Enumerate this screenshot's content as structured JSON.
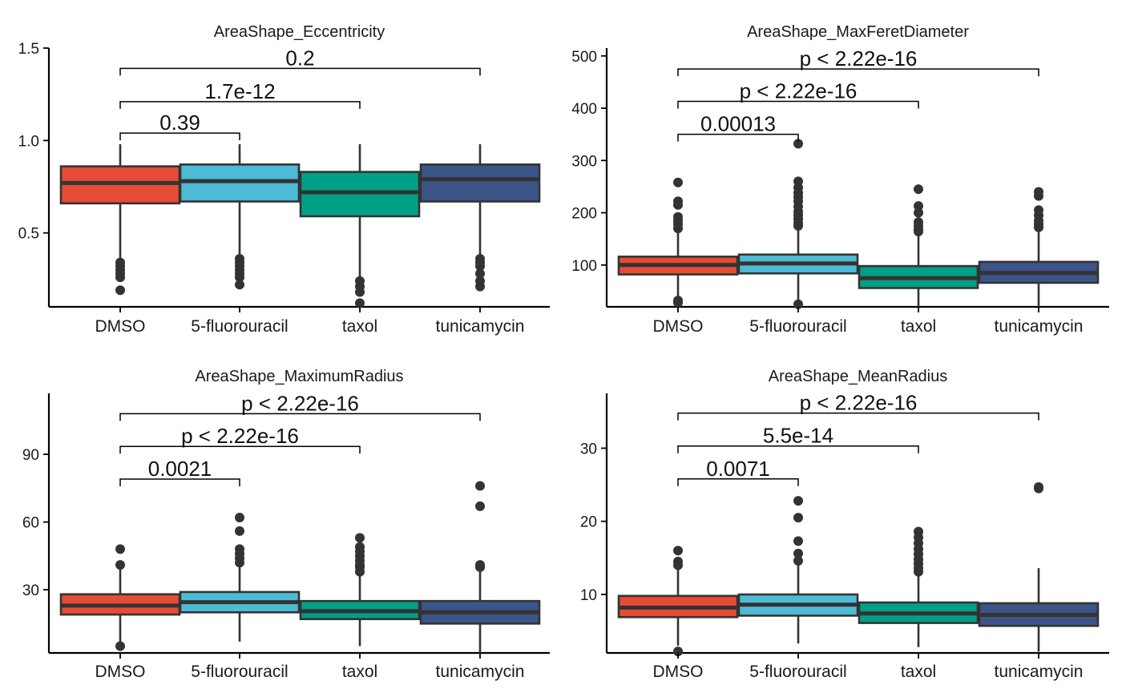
{
  "chart_data": [
    {
      "type": "box",
      "title": "AreaShape_Eccentricity",
      "categories": [
        "DMSO",
        "5-fluorouracil",
        "taxol",
        "tunicamycin"
      ],
      "colors": [
        "#E64B35",
        "#4DBBD5",
        "#00A087",
        "#3C5488"
      ],
      "ylim": [
        0.1,
        1.5
      ],
      "yticks": [
        0.5,
        1.0,
        1.5
      ],
      "ytick_labels": [
        "0.5",
        "1.0",
        "1.5"
      ],
      "boxes": [
        {
          "lower": 0.35,
          "q1": 0.66,
          "median": 0.77,
          "q3": 0.86,
          "upper": 0.98,
          "outliers": [
            0.34,
            0.32,
            0.3,
            0.28,
            0.26,
            0.19
          ]
        },
        {
          "lower": 0.37,
          "q1": 0.67,
          "median": 0.78,
          "q3": 0.87,
          "upper": 0.98,
          "outliers": [
            0.36,
            0.34,
            0.32,
            0.3,
            0.28,
            0.26,
            0.22
          ]
        },
        {
          "lower": 0.25,
          "q1": 0.59,
          "median": 0.72,
          "q3": 0.83,
          "upper": 0.98,
          "outliers": [
            0.24,
            0.21,
            0.18,
            0.12
          ]
        },
        {
          "lower": 0.37,
          "q1": 0.67,
          "median": 0.79,
          "q3": 0.87,
          "upper": 0.98,
          "outliers": [
            0.36,
            0.34,
            0.32,
            0.28,
            0.24,
            0.21
          ]
        }
      ],
      "comparisons": [
        {
          "from": 0,
          "to": 1,
          "label": "0.39",
          "y": 1.04
        },
        {
          "from": 0,
          "to": 2,
          "label": "1.7e-12",
          "y": 1.21
        },
        {
          "from": 0,
          "to": 3,
          "label": "0.2",
          "y": 1.39
        }
      ]
    },
    {
      "type": "box",
      "title": "AreaShape_MaxFeretDiameter",
      "categories": [
        "DMSO",
        "5-fluorouracil",
        "taxol",
        "tunicamycin"
      ],
      "colors": [
        "#E64B35",
        "#4DBBD5",
        "#00A087",
        "#3C5488"
      ],
      "ylim": [
        20,
        515
      ],
      "yticks": [
        100,
        200,
        300,
        400,
        500
      ],
      "ytick_labels": [
        "100",
        "200",
        "300",
        "400",
        "500"
      ],
      "boxes": [
        {
          "lower": 30,
          "q1": 82,
          "median": 100,
          "q3": 116,
          "upper": 165,
          "outliers": [
            258,
            222,
            215,
            192,
            185,
            178,
            170,
            32,
            28
          ]
        },
        {
          "lower": 30,
          "q1": 84,
          "median": 103,
          "q3": 120,
          "upper": 172,
          "outliers": [
            332,
            260,
            248,
            238,
            230,
            222,
            212,
            202,
            195,
            188,
            180,
            175,
            25
          ]
        },
        {
          "lower": 20,
          "q1": 56,
          "median": 75,
          "q3": 98,
          "upper": 160,
          "outliers": [
            245,
            213,
            200,
            182,
            175,
            168,
            164
          ]
        },
        {
          "lower": 20,
          "q1": 66,
          "median": 85,
          "q3": 106,
          "upper": 165,
          "outliers": [
            240,
            232,
            205,
            195,
            185,
            178,
            172
          ]
        }
      ],
      "comparisons": [
        {
          "from": 0,
          "to": 1,
          "label": "0.00013",
          "y": 350
        },
        {
          "from": 0,
          "to": 2,
          "label": "p < 2.22e-16",
          "y": 413
        },
        {
          "from": 0,
          "to": 3,
          "label": "p < 2.22e-16",
          "y": 475
        }
      ]
    },
    {
      "type": "box",
      "title": "AreaShape_MaximumRadius",
      "categories": [
        "DMSO",
        "5-fluorouracil",
        "taxol",
        "tunicamycin"
      ],
      "colors": [
        "#E64B35",
        "#4DBBD5",
        "#00A087",
        "#3C5488"
      ],
      "ylim": [
        2,
        117
      ],
      "yticks": [
        30,
        60,
        90
      ],
      "ytick_labels": [
        "30",
        "60",
        "90"
      ],
      "boxes": [
        {
          "lower": 7,
          "q1": 19,
          "median": 23,
          "q3": 28,
          "upper": 39,
          "outliers": [
            48,
            41,
            5
          ]
        },
        {
          "lower": 7,
          "q1": 20,
          "median": 24.5,
          "q3": 29,
          "upper": 40,
          "outliers": [
            62,
            56,
            48,
            46,
            44,
            42
          ]
        },
        {
          "lower": 5,
          "q1": 17,
          "median": 20.5,
          "q3": 25,
          "upper": 36,
          "outliers": [
            53,
            49,
            47,
            45,
            43,
            41,
            40,
            38
          ]
        },
        {
          "lower": 2,
          "q1": 15,
          "median": 20,
          "q3": 25,
          "upper": 38,
          "outliers": [
            76,
            67,
            41,
            40
          ]
        }
      ],
      "comparisons": [
        {
          "from": 0,
          "to": 1,
          "label": "0.0021",
          "y": 79
        },
        {
          "from": 0,
          "to": 2,
          "label": "p < 2.22e-16",
          "y": 93.5
        },
        {
          "from": 0,
          "to": 3,
          "label": "p < 2.22e-16",
          "y": 108
        }
      ]
    },
    {
      "type": "box",
      "title": "AreaShape_MeanRadius",
      "categories": [
        "DMSO",
        "5-fluorouracil",
        "taxol",
        "tunicamycin"
      ],
      "colors": [
        "#E64B35",
        "#4DBBD5",
        "#00A087",
        "#3C5488"
      ],
      "ylim": [
        2,
        37.5
      ],
      "yticks": [
        10,
        20,
        30
      ],
      "ytick_labels": [
        "10",
        "20",
        "30"
      ],
      "boxes": [
        {
          "lower": 3,
          "q1": 6.9,
          "median": 8.2,
          "q3": 9.8,
          "upper": 13.5,
          "outliers": [
            16,
            14.5,
            14,
            2.2
          ]
        },
        {
          "lower": 3.3,
          "q1": 7.1,
          "median": 8.6,
          "q3": 10,
          "upper": 14,
          "outliers": [
            22.8,
            20.5,
            17.3,
            15.6,
            14.6
          ]
        },
        {
          "lower": 2.8,
          "q1": 6.1,
          "median": 7.4,
          "q3": 8.9,
          "upper": 12.5,
          "outliers": [
            18.6,
            17.8,
            17,
            16.2,
            15.5,
            14.8,
            14.2,
            13.6,
            13.1
          ]
        },
        {
          "lower": 2.2,
          "q1": 5.7,
          "median": 7.2,
          "q3": 8.8,
          "upper": 13.6,
          "outliers": [
            24.7,
            24.5
          ]
        }
      ],
      "comparisons": [
        {
          "from": 0,
          "to": 1,
          "label": "0.0071",
          "y": 25.8
        },
        {
          "from": 0,
          "to": 2,
          "label": "5.5e-14",
          "y": 30.3
        },
        {
          "from": 0,
          "to": 3,
          "label": "p < 2.22e-16",
          "y": 34.8
        }
      ]
    }
  ]
}
